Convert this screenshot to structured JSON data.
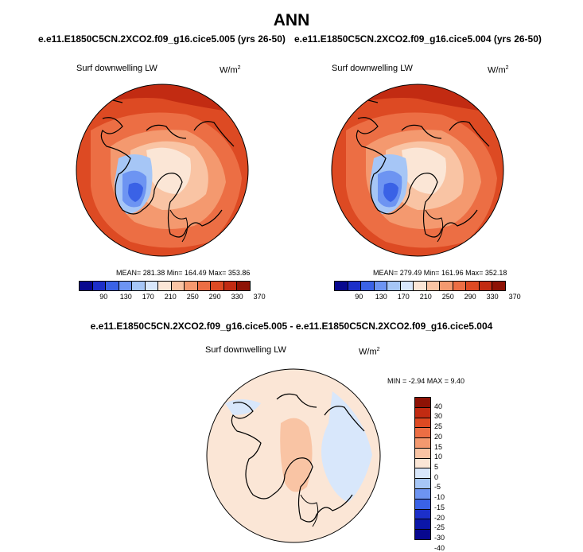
{
  "title": "ANN",
  "panels": [
    {
      "case": "e.e11.E1850C5CN.2XCO2.f09_g16.cice5.005 (yrs 26-50)",
      "variable": "Surf downwelling LW",
      "units": "W/m",
      "units_sup": "2",
      "stats_line": "MEAN= 281.38  Min= 164.49  Max= 353.86",
      "chart_data": {
        "type": "heatmap",
        "projection": "north-polar-stereographic",
        "mean": 281.38,
        "min": 164.49,
        "max": 353.86,
        "colorbar_ticks": [
          "90",
          "130",
          "170",
          "210",
          "250",
          "290",
          "330",
          "370"
        ]
      }
    },
    {
      "case": "e.e11.E1850C5CN.2XCO2.f09_g16.cice5.004 (yrs 26-50)",
      "variable": "Surf downwelling LW",
      "units": "W/m",
      "units_sup": "2",
      "stats_line": "MEAN= 279.49  Min= 161.96  Max= 352.18",
      "chart_data": {
        "type": "heatmap",
        "projection": "north-polar-stereographic",
        "mean": 279.49,
        "min": 161.96,
        "max": 352.18,
        "colorbar_ticks": [
          "90",
          "130",
          "170",
          "210",
          "250",
          "290",
          "330",
          "370"
        ]
      }
    }
  ],
  "difference": {
    "title": "e.e11.E1850C5CN.2XCO2.f09_g16.cice5.005 - e.e11.E1850C5CN.2XCO2.f09_g16.cice5.004",
    "variable": "Surf downwelling LW",
    "units": "W/m",
    "units_sup": "2",
    "stats_line": "MIN =  -2.94 MAX =   9.40",
    "chart_data": {
      "type": "heatmap",
      "projection": "north-polar-stereographic",
      "min": -2.94,
      "max": 9.4,
      "colorbar_ticks": [
        "40",
        "30",
        "25",
        "20",
        "15",
        "10",
        "5",
        "0",
        "-5",
        "-10",
        "-15",
        "-20",
        "-25",
        "-30",
        "-40"
      ]
    }
  },
  "colors": {
    "abs_scale": [
      "#08088f",
      "#1c2fc9",
      "#3a62e6",
      "#6d94f2",
      "#a6c6f6",
      "#d8e7fb",
      "#fbe6d6",
      "#f9c4a4",
      "#f4996f",
      "#ec6e44",
      "#dd4a23",
      "#c22b12",
      "#8e1205"
    ],
    "diff_scale": [
      "#8e1205",
      "#c22b12",
      "#dd4a23",
      "#ec6e44",
      "#f4996f",
      "#f9c4a4",
      "#fbe6d6",
      "#d8e7fb",
      "#a6c6f6",
      "#6d94f2",
      "#3a62e6",
      "#1c2fc9",
      "#0b16a8",
      "#08088f"
    ]
  }
}
